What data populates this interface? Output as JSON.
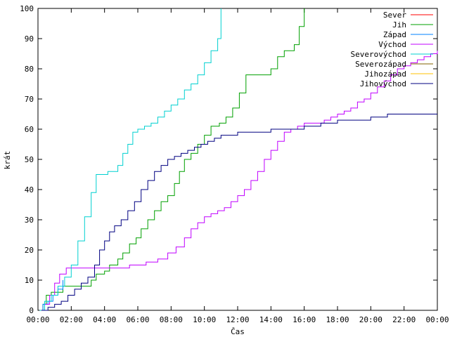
{
  "chart_data": {
    "type": "line",
    "title": "",
    "xlabel": "Čas",
    "ylabel": "krát",
    "xlim": [
      0,
      24
    ],
    "ylim": [
      0,
      100
    ],
    "grid": false,
    "legend_position": "top-right",
    "x_ticks": [
      {
        "value": 0,
        "label": "00:00"
      },
      {
        "value": 2,
        "label": "02:00"
      },
      {
        "value": 4,
        "label": "04:00"
      },
      {
        "value": 6,
        "label": "06:00"
      },
      {
        "value": 8,
        "label": "08:00"
      },
      {
        "value": 10,
        "label": "10:00"
      },
      {
        "value": 12,
        "label": "12:00"
      },
      {
        "value": 14,
        "label": "14:00"
      },
      {
        "value": 16,
        "label": "16:00"
      },
      {
        "value": 18,
        "label": "18:00"
      },
      {
        "value": 20,
        "label": "20:00"
      },
      {
        "value": 22,
        "label": "22:00"
      },
      {
        "value": 24,
        "label": "00:00"
      }
    ],
    "y_ticks": [
      0,
      10,
      20,
      30,
      40,
      50,
      60,
      70,
      80,
      90,
      100
    ],
    "series": [
      {
        "name": "Sever",
        "color": "#ff0000",
        "x": [],
        "y": []
      },
      {
        "name": "Jih",
        "color": "#00a000",
        "x": [
          0.1,
          0.3,
          0.5,
          0.8,
          1.2,
          1.5,
          2.0,
          2.5,
          3.2,
          3.5,
          4.0,
          4.3,
          4.8,
          5.1,
          5.5,
          5.9,
          6.2,
          6.6,
          7.0,
          7.4,
          7.8,
          8.2,
          8.5,
          8.8,
          9.2,
          9.6,
          10.0,
          10.4,
          10.9,
          11.3,
          11.7,
          12.1,
          12.5,
          13.0,
          13.5,
          14.0,
          14.4,
          14.8,
          15.1,
          15.4,
          15.7,
          16.0
        ],
        "y": [
          0,
          2,
          5,
          6,
          6,
          8,
          8,
          8,
          10,
          12,
          13,
          15,
          17,
          19,
          22,
          24,
          27,
          30,
          33,
          36,
          38,
          42,
          46,
          50,
          52,
          55,
          58,
          61,
          62,
          64,
          67,
          72,
          78,
          78,
          78,
          80,
          84,
          86,
          86,
          88,
          94,
          100
        ]
      },
      {
        "name": "Západ",
        "color": "#0080ff",
        "x": [
          0.1,
          0.3,
          0.6,
          0.9,
          1.2,
          1.5
        ],
        "y": [
          0,
          2,
          3,
          5,
          7,
          10
        ]
      },
      {
        "name": "Východ",
        "color": "#c000ff",
        "x": [
          0.1,
          0.4,
          0.7,
          1.0,
          1.3,
          1.7,
          2.5,
          3.5,
          4.5,
          5.5,
          6.5,
          7.2,
          7.8,
          8.3,
          8.8,
          9.2,
          9.6,
          10.0,
          10.4,
          10.8,
          11.2,
          11.6,
          12.0,
          12.4,
          12.8,
          13.2,
          13.6,
          14.0,
          14.4,
          14.8,
          15.2,
          15.6,
          16.0,
          16.4,
          16.8,
          17.2,
          17.6,
          18.0,
          18.4,
          18.8,
          19.2,
          19.6,
          20.0,
          20.4,
          20.8,
          21.2,
          21.6,
          22.0,
          22.4,
          22.8,
          23.2,
          23.6,
          24.0
        ],
        "y": [
          0,
          2,
          5,
          9,
          12,
          14,
          14,
          14,
          14,
          15,
          16,
          17,
          19,
          21,
          24,
          27,
          29,
          31,
          32,
          33,
          34,
          36,
          38,
          40,
          43,
          46,
          50,
          53,
          56,
          59,
          60,
          61,
          62,
          62,
          62,
          63,
          64,
          65,
          66,
          67,
          69,
          70,
          72,
          74,
          76,
          78,
          80,
          81,
          82,
          83,
          84,
          85,
          86
        ]
      },
      {
        "name": "Severovýchod",
        "color": "#00d0d0",
        "x": [
          0.1,
          0.4,
          0.8,
          1.2,
          1.6,
          2.0,
          2.4,
          2.8,
          3.2,
          3.5,
          4.2,
          4.8,
          5.1,
          5.4,
          5.7,
          6.0,
          6.4,
          6.8,
          7.2,
          7.6,
          8.0,
          8.4,
          8.8,
          9.2,
          9.6,
          10.0,
          10.4,
          10.8,
          11.0
        ],
        "y": [
          0,
          3,
          5,
          8,
          11,
          15,
          23,
          31,
          39,
          45,
          46,
          48,
          52,
          55,
          59,
          60,
          61,
          62,
          64,
          66,
          68,
          70,
          73,
          75,
          78,
          82,
          86,
          90,
          100
        ]
      },
      {
        "name": "Severozápad",
        "color": "#806000",
        "x": [],
        "y": []
      },
      {
        "name": "Jihozápad",
        "color": "#ffc000",
        "x": [],
        "y": []
      },
      {
        "name": "Jihovýchod",
        "color": "#000080",
        "x": [
          0.2,
          0.6,
          1.0,
          1.4,
          1.8,
          2.2,
          2.6,
          3.0,
          3.4,
          3.7,
          4.0,
          4.3,
          4.6,
          5.0,
          5.4,
          5.8,
          6.2,
          6.6,
          7.0,
          7.4,
          7.8,
          8.2,
          8.6,
          9.0,
          9.4,
          9.8,
          10.2,
          10.6,
          11.0,
          12.0,
          13.0,
          14.0,
          15.0,
          16.0,
          17.0,
          18.0,
          19.0,
          20.0,
          21.0,
          22.0,
          23.0,
          24.0
        ],
        "y": [
          0,
          1,
          2,
          3,
          5,
          7,
          9,
          11,
          15,
          20,
          23,
          26,
          28,
          30,
          33,
          36,
          40,
          43,
          46,
          48,
          50,
          51,
          52,
          53,
          54,
          55,
          56,
          57,
          58,
          59,
          59,
          60,
          60,
          61,
          62,
          63,
          63,
          64,
          65,
          65,
          65,
          65
        ]
      }
    ]
  }
}
